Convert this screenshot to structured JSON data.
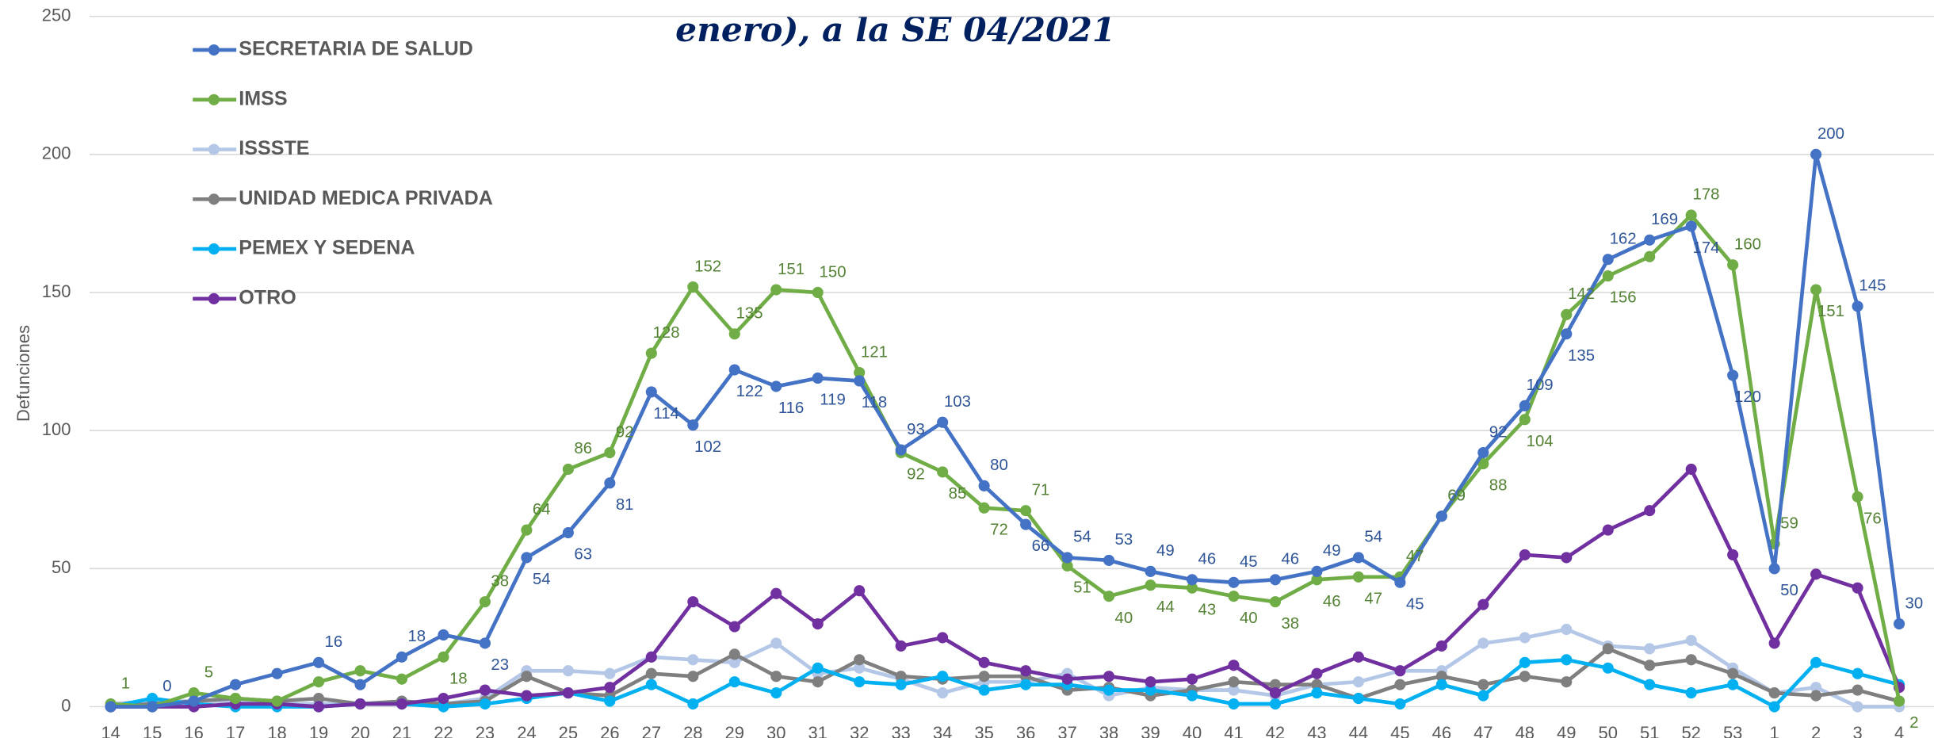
{
  "chart_data": {
    "type": "line",
    "title": "enero), a la SE 04/2021",
    "y_label": "Defunciones",
    "categories": [
      "14",
      "15",
      "16",
      "17",
      "18",
      "19",
      "20",
      "21",
      "22",
      "23",
      "24",
      "25",
      "26",
      "27",
      "28",
      "29",
      "30",
      "31",
      "32",
      "33",
      "34",
      "35",
      "36",
      "37",
      "38",
      "39",
      "40",
      "41",
      "42",
      "43",
      "44",
      "45",
      "46",
      "47",
      "48",
      "49",
      "50",
      "51",
      "52",
      "53",
      "1",
      "2",
      "3",
      "4"
    ],
    "ylim": [
      0,
      250
    ],
    "yticks": [
      0,
      50,
      100,
      150,
      200,
      250
    ],
    "grid": true,
    "legend": "top-left",
    "series": [
      {
        "name": "SECRETARIA DE SALUD",
        "color": "#4472c4",
        "label_color": "#2f5597",
        "values": [
          0,
          0,
          2,
          8,
          12,
          16,
          8,
          18,
          26,
          23,
          54,
          63,
          81,
          114,
          102,
          122,
          116,
          119,
          118,
          93,
          103,
          80,
          66,
          54,
          53,
          49,
          46,
          45,
          46,
          49,
          54,
          45,
          69,
          92,
          109,
          135,
          162,
          169,
          174,
          120,
          50,
          200,
          145,
          30
        ],
        "value_labels": [
          null,
          "0",
          null,
          null,
          null,
          "16",
          null,
          "18",
          null,
          "23",
          "54",
          "63",
          "81",
          "114",
          "102",
          "122",
          "116",
          "119",
          "118",
          "93",
          "103",
          "80",
          "66",
          "54",
          "53",
          "49",
          "46",
          "45",
          "46",
          "49",
          "54",
          "45",
          "69",
          "92",
          "109",
          "135",
          "162",
          "169",
          "174",
          "120",
          "50",
          "200",
          "145",
          "30"
        ]
      },
      {
        "name": "IMSS",
        "color": "#70ad47",
        "label_color": "#548235",
        "values": [
          1,
          0,
          5,
          3,
          2,
          9,
          13,
          10,
          18,
          38,
          64,
          86,
          92,
          128,
          152,
          135,
          151,
          150,
          121,
          92,
          85,
          72,
          71,
          51,
          40,
          44,
          43,
          40,
          38,
          46,
          47,
          47,
          69,
          88,
          104,
          142,
          156,
          163,
          178,
          160,
          59,
          151,
          76,
          2
        ],
        "value_labels": [
          "1",
          null,
          "5",
          null,
          null,
          null,
          null,
          null,
          "18",
          "38",
          "64",
          "86",
          "92",
          "128",
          "152",
          "135",
          "151",
          "150",
          "121",
          "92",
          "85",
          "72",
          "71",
          "51",
          "40",
          "44",
          "43",
          "40",
          "38",
          "46",
          "47",
          "47",
          "69",
          "88",
          "104",
          "142",
          "156",
          null,
          "178",
          "160",
          "59",
          "151",
          "76",
          "2"
        ]
      },
      {
        "name": "ISSSTE",
        "color": "#b4c7e7",
        "values": [
          1,
          2,
          2,
          2,
          1,
          1,
          1,
          1,
          1,
          3,
          13,
          13,
          12,
          18,
          17,
          16,
          23,
          12,
          14,
          10,
          5,
          9,
          9,
          12,
          4,
          7,
          6,
          6,
          4,
          8,
          9,
          13,
          13,
          23,
          25,
          28,
          22,
          21,
          24,
          14,
          5,
          7,
          0,
          0
        ]
      },
      {
        "name": "UNIDAD MEDICA PRIVADA",
        "color": "#7f7f7f",
        "values": [
          0,
          1,
          2,
          3,
          2,
          3,
          1,
          2,
          1,
          2,
          11,
          5,
          4,
          12,
          11,
          19,
          11,
          9,
          17,
          11,
          10,
          11,
          11,
          6,
          7,
          4,
          6,
          9,
          8,
          8,
          3,
          8,
          11,
          8,
          11,
          9,
          21,
          15,
          17,
          12,
          5,
          4,
          6,
          2
        ]
      },
      {
        "name": "PEMEX Y SEDENA",
        "color": "#00b0f0",
        "values": [
          0,
          3,
          1,
          0,
          0,
          0,
          1,
          1,
          0,
          1,
          3,
          5,
          2,
          8,
          1,
          9,
          5,
          14,
          9,
          8,
          11,
          6,
          8,
          8,
          6,
          6,
          4,
          1,
          1,
          5,
          3,
          1,
          8,
          4,
          16,
          17,
          14,
          8,
          5,
          8,
          0,
          16,
          12,
          8
        ]
      },
      {
        "name": "OTRO",
        "color": "#7030a0",
        "values": [
          0,
          0,
          0,
          1,
          1,
          0,
          1,
          1,
          3,
          6,
          4,
          5,
          7,
          18,
          38,
          29,
          41,
          30,
          42,
          22,
          25,
          16,
          13,
          10,
          11,
          9,
          10,
          15,
          5,
          12,
          18,
          13,
          22,
          37,
          55,
          54,
          64,
          71,
          86,
          55,
          23,
          48,
          43,
          7
        ]
      }
    ]
  }
}
